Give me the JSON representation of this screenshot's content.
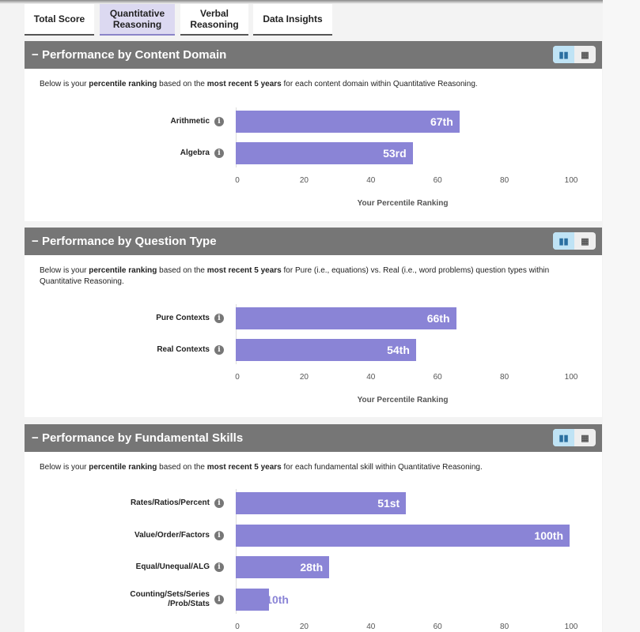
{
  "tabs": [
    "Total Score",
    "Quantitative Reasoning",
    "Verbal Reasoning",
    "Data Insights"
  ],
  "active_tab": 1,
  "toggle_icons": [
    "bar-chart-icon",
    "table-icon"
  ],
  "colors": {
    "bar": "#8a84d6",
    "header": "#767676"
  },
  "chart_data": [
    {
      "type": "bar",
      "orientation": "horizontal",
      "title": "Performance by Content Domain",
      "description": {
        "pre": "Below is your ",
        "b1": "percentile ranking",
        "mid": " based on the ",
        "b2": "most recent 5 years",
        "post": " for each content domain within Quantitative Reasoning."
      },
      "categories": [
        "Arithmetic",
        "Algebra"
      ],
      "values": [
        67,
        53
      ],
      "labels": [
        "67th",
        "53rd"
      ],
      "xticks": [
        "0",
        "20",
        "40",
        "60",
        "80",
        "100"
      ],
      "xlim": [
        0,
        100
      ],
      "xlabel": "Your Percentile Ranking"
    },
    {
      "type": "bar",
      "orientation": "horizontal",
      "title": "Performance by Question Type",
      "description": {
        "pre": "Below is your ",
        "b1": "percentile ranking",
        "mid": " based on the ",
        "b2": "most recent 5 years",
        "post": " for Pure (i.e., equations) vs. Real (i.e., word problems) question types within Quantitative Reasoning."
      },
      "categories": [
        "Pure Contexts",
        "Real Contexts"
      ],
      "values": [
        66,
        54
      ],
      "labels": [
        "66th",
        "54th"
      ],
      "xticks": [
        "0",
        "20",
        "40",
        "60",
        "80",
        "100"
      ],
      "xlim": [
        0,
        100
      ],
      "xlabel": "Your Percentile Ranking"
    },
    {
      "type": "bar",
      "orientation": "horizontal",
      "title": "Performance by Fundamental Skills",
      "description": {
        "pre": "Below is your ",
        "b1": "percentile ranking",
        "mid": " based on the ",
        "b2": "most recent 5 years",
        "post": " for each fundamental skill within Quantitative Reasoning."
      },
      "categories": [
        "Rates/Ratios/Percent",
        "Value/Order/Factors",
        "Equal/Unequal/ALG",
        "Counting/Sets/Series /Prob/Stats"
      ],
      "values": [
        51,
        100,
        28,
        10
      ],
      "labels": [
        "51st",
        "100th",
        "28th",
        "10th"
      ],
      "xticks": [
        "0",
        "20",
        "40",
        "60",
        "80",
        "100"
      ],
      "xlim": [
        0,
        100
      ],
      "xlabel": ""
    }
  ]
}
